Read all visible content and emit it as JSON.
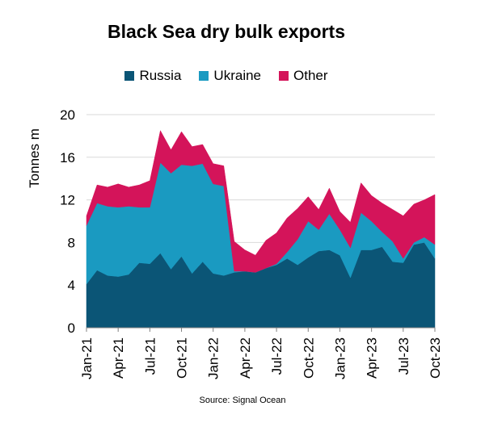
{
  "chart_data": {
    "type": "area",
    "stacked": true,
    "title": "Black Sea dry bulk exports",
    "ylabel": "Tonnes m",
    "xlabel": "",
    "ylim": [
      0,
      20
    ],
    "yticks": [
      0,
      4,
      8,
      12,
      16,
      20
    ],
    "x": [
      "Jan-21",
      "Feb-21",
      "Mar-21",
      "Apr-21",
      "May-21",
      "Jun-21",
      "Jul-21",
      "Aug-21",
      "Sep-21",
      "Oct-21",
      "Nov-21",
      "Dec-21",
      "Jan-22",
      "Feb-22",
      "Mar-22",
      "Apr-22",
      "May-22",
      "Jun-22",
      "Jul-22",
      "Aug-22",
      "Sep-22",
      "Oct-22",
      "Nov-22",
      "Dec-22",
      "Jan-23",
      "Feb-23",
      "Mar-23",
      "Apr-23",
      "May-23",
      "Jun-23",
      "Jul-23",
      "Aug-23",
      "Sep-23",
      "Oct-23"
    ],
    "xticks": [
      "Jan-21",
      "Apr-21",
      "Jul-21",
      "Oct-21",
      "Jan-22",
      "Apr-22",
      "Jul-22",
      "Oct-22",
      "Jan-23",
      "Apr-23",
      "Jul-23",
      "Oct-23"
    ],
    "legend_position": "top",
    "grid": "horizontal",
    "series": [
      {
        "name": "Russia",
        "color": "#0b5576",
        "values": [
          4.1,
          5.4,
          4.9,
          4.8,
          5.0,
          6.1,
          6.0,
          7.0,
          5.5,
          6.7,
          5.1,
          6.2,
          5.1,
          4.9,
          5.2,
          5.3,
          5.2,
          5.6,
          5.9,
          6.5,
          5.9,
          6.6,
          7.2,
          7.3,
          6.8,
          4.7,
          7.3,
          7.3,
          7.6,
          6.2,
          6.1,
          7.8,
          8.0,
          6.5
        ]
      },
      {
        "name": "Ukraine",
        "color": "#1a9ac1",
        "values": [
          5.5,
          6.3,
          6.5,
          6.5,
          6.4,
          5.2,
          5.3,
          8.5,
          9.0,
          8.6,
          10.1,
          9.2,
          8.4,
          8.4,
          0.1,
          0.0,
          0.0,
          0.0,
          0.1,
          0.6,
          2.4,
          3.4,
          2.0,
          3.4,
          2.4,
          2.8,
          3.5,
          2.7,
          1.4,
          1.9,
          0.4,
          0.2,
          0.5,
          1.3
        ]
      },
      {
        "name": "Other",
        "color": "#d4145a",
        "values": [
          0.9,
          1.7,
          1.8,
          2.2,
          1.8,
          2.1,
          2.5,
          3.0,
          2.2,
          3.1,
          1.8,
          1.8,
          1.9,
          1.9,
          2.8,
          2.0,
          1.6,
          2.6,
          2.9,
          3.2,
          2.9,
          2.3,
          1.9,
          2.4,
          1.7,
          2.4,
          2.8,
          2.4,
          2.7,
          3.0,
          4.0,
          3.6,
          3.5,
          4.7
        ]
      }
    ]
  },
  "source": "Source: Signal Ocean"
}
